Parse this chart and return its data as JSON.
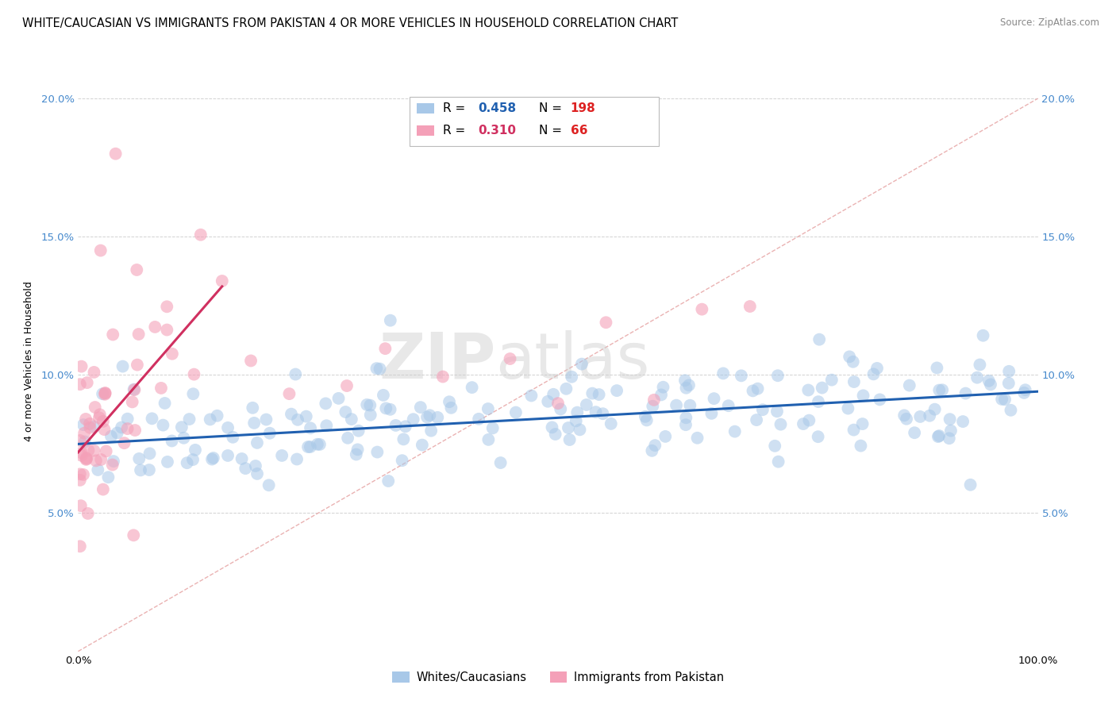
{
  "title": "WHITE/CAUCASIAN VS IMMIGRANTS FROM PAKISTAN 4 OR MORE VEHICLES IN HOUSEHOLD CORRELATION CHART",
  "source": "Source: ZipAtlas.com",
  "ylabel": "4 or more Vehicles in Household",
  "watermark_zip": "ZIP",
  "watermark_atlas": "atlas",
  "xlim": [
    0.0,
    100.0
  ],
  "ylim": [
    0.0,
    21.0
  ],
  "xticks": [
    0,
    20,
    40,
    60,
    80,
    100
  ],
  "xticklabels": [
    "0.0%",
    "",
    "",
    "",
    "",
    "100.0%"
  ],
  "yticks": [
    0,
    5,
    10,
    15,
    20
  ],
  "yticklabels": [
    "",
    "5.0%",
    "10.0%",
    "15.0%",
    "20.0%"
  ],
  "blue_R": 0.458,
  "blue_N": 198,
  "pink_R": 0.31,
  "pink_N": 66,
  "blue_color": "#A8C8E8",
  "pink_color": "#F4A0B8",
  "blue_line_color": "#2060B0",
  "pink_line_color": "#D03060",
  "diag_color": "#E8A0A0",
  "tick_color": "#4488CC",
  "background_color": "#FFFFFF",
  "blue_trend_x": [
    0,
    100
  ],
  "blue_trend_y": [
    7.5,
    9.4
  ],
  "pink_trend_x": [
    0,
    15
  ],
  "pink_trend_y": [
    7.2,
    13.2
  ],
  "legend_labels": [
    "Whites/Caucasians",
    "Immigrants from Pakistan"
  ],
  "title_fontsize": 10.5,
  "axis_fontsize": 9,
  "tick_fontsize": 9.5,
  "watermark_fontsize": 58
}
